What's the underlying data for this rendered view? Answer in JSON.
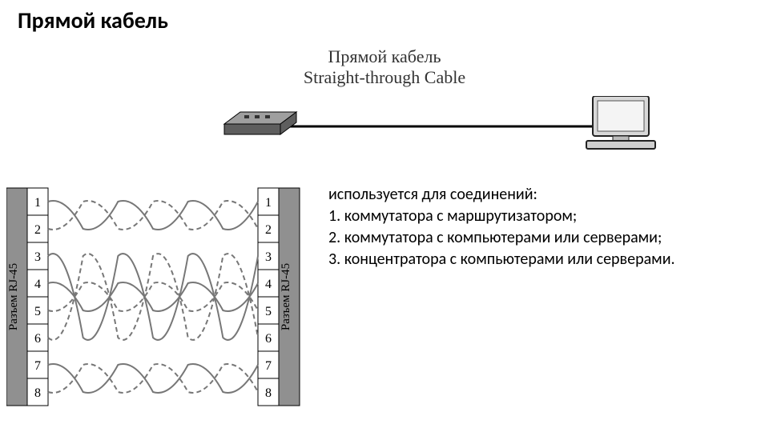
{
  "title": {
    "text": "Прямой кабель",
    "fontsize": 28,
    "weight": "bold"
  },
  "centerLabels": {
    "line1": "Прямой кабель",
    "line2": "Straight-through Cable",
    "fontsize": 22,
    "color": "#333333",
    "font": "serif"
  },
  "topDiagram": {
    "type": "infographic",
    "background": "#ffffff",
    "cable_color": "#000000",
    "cable_width": 3,
    "switch_fill": "#9f9f9f",
    "switch_dark": "#5e5e5e",
    "switch_edge": "#000000",
    "pc_fill": "#d8d8d8",
    "pc_stroke": "#222222",
    "pc_screen": "#f4f4f4"
  },
  "uses": {
    "lead": "используется для соединений:",
    "items": [
      "1. коммутатора с маршрутизатором;",
      "2. коммутатора с компьютерами или серверами;",
      "3. концентратора с компьютерами или серверами."
    ],
    "fontsize": 20
  },
  "pinout": {
    "type": "network",
    "connector_label": "Разъем RJ-45",
    "pins": [
      "1",
      "2",
      "3",
      "4",
      "5",
      "6",
      "7",
      "8"
    ],
    "connector_fill": "#bababa",
    "connector_stroke": "#000000",
    "label_fill": "#909090",
    "label_text_color": "#000000",
    "pinbox_fill": "#ffffff",
    "pinbox_stroke": "#000000",
    "pin_fontsize": 16,
    "wire_solid_color": "#777777",
    "wire_dashed_color": "#777777",
    "wire_width": 2,
    "dash_pattern": "6,4",
    "pairs": [
      {
        "a": 1,
        "b": 2
      },
      {
        "a": 3,
        "b": 6
      },
      {
        "a": 4,
        "b": 5
      },
      {
        "a": 7,
        "b": 8
      }
    ]
  }
}
